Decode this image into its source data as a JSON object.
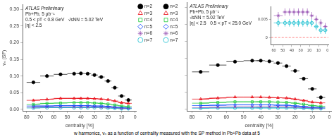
{
  "chart_data": [
    {
      "type": "line",
      "xlabel": "centrality [%]",
      "ylabel": "vₙ (SP)",
      "annotations": [
        "ATLAS Preliminary",
        "Pb+Pb, 5 μb⁻¹",
        "0.5 < pT < 0.8 GeV   √sNN = 5.02 TeV",
        "|η| < 2.5"
      ],
      "x": [
        75,
        65,
        55,
        45,
        40,
        35,
        30,
        25,
        20,
        15,
        10,
        5
      ],
      "x_errors": [
        5,
        5,
        5,
        5,
        2.5,
        2.5,
        2.5,
        2.5,
        2.5,
        2.5,
        2.5,
        2.5
      ],
      "xlim": [
        83,
        -1
      ],
      "xticks": [
        80,
        70,
        60,
        50,
        40,
        30,
        20,
        10,
        0
      ],
      "ylim": [
        -0.005,
        0.315
      ],
      "yticks": [
        {
          "value": 0.0,
          "label": "0.00"
        },
        0.05,
        {
          "value": 0.1,
          "label": "0.10"
        },
        0.15,
        {
          "value": 0.2,
          "label": "0.20"
        },
        0.25,
        {
          "value": 0.3,
          "label": "0.30"
        }
      ],
      "grid": false,
      "legend": "upper right",
      "series": [
        {
          "name": "n=2",
          "color": "#000000",
          "marker": "circle",
          "line_style": "none",
          "values": [
            0.081,
            0.1,
            0.105,
            0.107,
            0.108,
            0.107,
            0.103,
            0.097,
            0.085,
            0.065,
            0.04,
            0.028
          ],
          "errors": [
            0.003,
            0.002,
            0.002,
            0.002,
            0.002,
            0.002,
            0.002,
            0.002,
            0.002,
            0.003,
            0.004,
            0.005
          ]
        },
        {
          "name": "n=3",
          "color": "#e8000b",
          "marker": "open-triangle",
          "line_style": "solid",
          "values": [
            0.027,
            0.03,
            0.033,
            0.033,
            0.033,
            0.033,
            0.032,
            0.031,
            0.029,
            0.025,
            0.02,
            0.018
          ],
          "errors": [
            0.002,
            0.001,
            0.001,
            0.001,
            0.001,
            0.001,
            0.001,
            0.001,
            0.001,
            0.001,
            0.002,
            0.003
          ]
        },
        {
          "name": "n=4",
          "color": "#1ac938",
          "marker": "open-square",
          "line_style": "solid",
          "values": [
            0.015,
            0.018,
            0.019,
            0.02,
            0.02,
            0.02,
            0.019,
            0.018,
            0.016,
            0.013,
            0.01,
            0.008
          ],
          "errors": [
            0.002,
            0.001,
            0.001,
            0.001,
            0.001,
            0.001,
            0.001,
            0.001,
            0.001,
            0.001,
            0.001,
            0.002
          ]
        },
        {
          "name": "n=5",
          "color": "#023eff",
          "marker": "open-diamond",
          "line_style": "solid",
          "values": [
            0.01,
            0.01,
            0.011,
            0.011,
            0.011,
            0.011,
            0.01,
            0.01,
            0.009,
            0.007,
            0.005,
            0.004
          ],
          "errors": [
            0.001,
            0.001,
            0.001,
            0.001,
            0.001,
            0.001,
            0.001,
            0.001,
            0.001,
            0.001,
            0.001,
            0.001
          ]
        },
        {
          "name": "n=6",
          "color": "#9b59b6",
          "marker": "open-star",
          "line_style": "solid",
          "values": [
            0.006,
            0.007,
            0.007,
            0.007,
            0.007,
            0.007,
            0.007,
            0.006,
            0.006,
            0.005,
            0.003,
            0.003
          ],
          "errors": [
            0.001,
            0.001,
            0.001,
            0.001,
            0.001,
            0.001,
            0.001,
            0.001,
            0.001,
            0.001,
            0.001,
            0.001
          ]
        },
        {
          "name": "n=7",
          "color": "#17becf",
          "marker": "open-circle",
          "line_style": "solid",
          "values": [
            0.004,
            0.005,
            0.005,
            0.005,
            0.005,
            0.005,
            0.005,
            0.005,
            0.004,
            0.003,
            0.002,
            0.002
          ],
          "errors": [
            0.001,
            0.001,
            0.001,
            0.001,
            0.001,
            0.001,
            0.001,
            0.001,
            0.001,
            0.001,
            0.001,
            0.001
          ]
        }
      ]
    },
    {
      "type": "line",
      "xlabel": "centrality [%]",
      "annotations": [
        "ATLAS Preliminary",
        "Pb+Pb, 5 μb⁻¹",
        "√sNN = 5.02 TeV",
        "|η| < 2.5   0.5 < pT < 25.0 GeV"
      ],
      "x": [
        75,
        65,
        55,
        45,
        40,
        35,
        30,
        25,
        20,
        15,
        10,
        5
      ],
      "x_errors": [
        5,
        5,
        5,
        5,
        2.5,
        2.5,
        2.5,
        2.5,
        2.5,
        2.5,
        2.5,
        2.5
      ],
      "xlim": [
        83,
        -1
      ],
      "xticks": [
        80,
        70,
        60,
        50,
        40,
        30,
        20,
        10,
        0
      ],
      "ylim": [
        -0.005,
        0.315
      ],
      "yticks": [
        0.0,
        0.05,
        0.1,
        0.15,
        0.2,
        0.25,
        0.3
      ],
      "tick_labels": "x",
      "grid": false,
      "legend": "upper left",
      "series": [
        {
          "name": "n=2",
          "color": "#000000",
          "marker": "circle",
          "line_style": "none",
          "values": [
            0.11,
            0.13,
            0.14,
            0.143,
            0.143,
            0.141,
            0.136,
            0.127,
            0.113,
            0.09,
            0.06,
            0.035
          ],
          "errors": [
            0.003,
            0.002,
            0.002,
            0.002,
            0.002,
            0.002,
            0.002,
            0.002,
            0.002,
            0.003,
            0.004,
            0.006
          ]
        },
        {
          "name": "n=3",
          "color": "#e8000b",
          "marker": "open-triangle",
          "line_style": "solid",
          "values": [
            0.03,
            0.033,
            0.036,
            0.036,
            0.036,
            0.035,
            0.034,
            0.033,
            0.03,
            0.026,
            0.021,
            0.019
          ],
          "errors": [
            0.002,
            0.001,
            0.001,
            0.001,
            0.001,
            0.001,
            0.001,
            0.001,
            0.001,
            0.001,
            0.002,
            0.003
          ]
        },
        {
          "name": "n=4",
          "color": "#1ac938",
          "marker": "open-square",
          "line_style": "solid",
          "values": [
            0.018,
            0.02,
            0.022,
            0.022,
            0.022,
            0.022,
            0.021,
            0.02,
            0.018,
            0.015,
            0.011,
            0.009
          ],
          "errors": [
            0.002,
            0.001,
            0.001,
            0.001,
            0.001,
            0.001,
            0.001,
            0.001,
            0.001,
            0.001,
            0.001,
            0.002
          ]
        },
        {
          "name": "n=5",
          "color": "#023eff",
          "marker": "open-diamond",
          "line_style": "solid",
          "values": [
            0.011,
            0.012,
            0.013,
            0.013,
            0.013,
            0.013,
            0.012,
            0.012,
            0.01,
            0.008,
            0.006,
            0.005
          ],
          "errors": [
            0.001,
            0.001,
            0.001,
            0.001,
            0.001,
            0.001,
            0.001,
            0.001,
            0.001,
            0.001,
            0.001,
            0.001
          ]
        },
        {
          "name": "n=6",
          "color": "#9b59b6",
          "marker": "open-star",
          "line_style": "solid",
          "values": [
            0.005,
            0.006,
            0.007,
            0.007,
            0.007,
            0.007,
            0.007,
            0.007,
            0.006,
            0.005,
            0.004,
            0.003
          ],
          "errors": [
            0.001,
            0.001,
            0.001,
            0.001,
            0.001,
            0.001,
            0.001,
            0.001,
            0.001,
            0.001,
            0.001,
            0.001
          ]
        },
        {
          "name": "n=7",
          "color": "#17becf",
          "marker": "open-circle",
          "line_style": "solid",
          "values": [
            0.003,
            0.004,
            0.004,
            0.004,
            0.004,
            0.004,
            0.004,
            0.004,
            0.004,
            0.003,
            0.002,
            0.002
          ],
          "errors": [
            0.001,
            0.001,
            0.001,
            0.001,
            0.001,
            0.001,
            0.001,
            0.001,
            0.001,
            0.001,
            0.001,
            0.001
          ]
        }
      ]
    },
    {
      "type": "scatter",
      "x": [
        55,
        47.5,
        42.5,
        37.5,
        32.5,
        27.5,
        22.5,
        17.5,
        12.5,
        7.5,
        2.5
      ],
      "x_errors": [
        5,
        2.5,
        2.5,
        2.5,
        2.5,
        2.5,
        2.5,
        2.5,
        2.5,
        2.5,
        2.5
      ],
      "xlim": [
        63,
        -1
      ],
      "xticks": [
        60,
        50,
        40,
        30,
        20,
        10,
        0
      ],
      "ylim": [
        -0.002,
        0.0085
      ],
      "yticks": [
        0,
        0.005
      ],
      "grid": false,
      "hlines": [
        {
          "value": 0,
          "color": "#ff6666",
          "line_style": "dashed"
        }
      ],
      "series": [
        {
          "color": "#9b59b6",
          "marker": "open-star",
          "line_style": "none",
          "values": [
            0.006,
            0.007,
            0.007,
            0.007,
            0.007,
            0.007,
            0.007,
            0.006,
            0.005,
            0.004,
            0.003
          ],
          "errors": [
            0.001,
            0.001,
            0.001,
            0.001,
            0.001,
            0.001,
            0.001,
            0.001,
            0.001,
            0.001,
            0.001
          ]
        },
        {
          "color": "#17becf",
          "marker": "open-circle",
          "line_style": "none",
          "values": [
            0.004,
            0.004,
            0.004,
            0.004,
            0.004,
            0.004,
            0.004,
            0.004,
            0.003,
            0.002,
            0.002
          ],
          "errors": [
            0.001,
            0.001,
            0.001,
            0.001,
            0.001,
            0.001,
            0.001,
            0.001,
            0.001,
            0.001,
            0.001
          ]
        }
      ]
    }
  ],
  "footer": "w harmonics, vₙ as a function of centrality measured with the SP method in Pb+Pb data at 5"
}
